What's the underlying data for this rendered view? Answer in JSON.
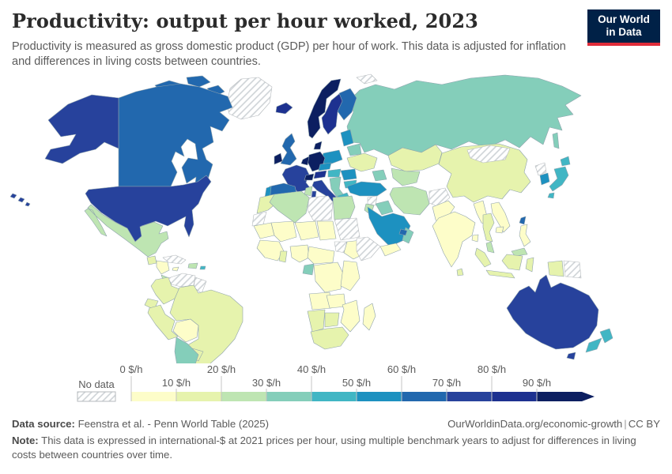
{
  "header": {
    "title": "Productivity: output per hour worked, 2023",
    "subtitle": "Productivity is measured as gross domestic product (GDP) per hour of work. This data is adjusted for inflation and differences in living costs between countries.",
    "logo": {
      "line1": "Our World",
      "line2": "in Data",
      "bg_color": "#002147",
      "accent_color": "#e02c3a"
    }
  },
  "legend": {
    "no_data_label": "No data",
    "tick_labels": [
      "0 $/h",
      "10 $/h",
      "20 $/h",
      "30 $/h",
      "40 $/h",
      "50 $/h",
      "60 $/h",
      "70 $/h",
      "80 $/h",
      "90 $/h"
    ],
    "bin_colors": [
      "#fdfdc9",
      "#e6f3ad",
      "#bee5b2",
      "#84ceba",
      "#41b6c4",
      "#1d91c0",
      "#2268ae",
      "#27429c",
      "#1d3190",
      "#0c1f61"
    ],
    "label_color": "#5b5b5b",
    "tick_color": "#c4c4c4",
    "nodata_border": "#b5babd",
    "country_border": "#8fa3ad"
  },
  "chart_data": {
    "type": "heatmap",
    "subtype": "choropleth-world-map",
    "title": "Productivity: output per hour worked, 2023",
    "unit": "$/h",
    "year": "2023",
    "legend_position": "bottom",
    "bins_order": [
      "no-data",
      "0-10 $/h",
      "10-20 $/h",
      "20-30 $/h",
      "30-40 $/h",
      "40-50 $/h",
      "50-60 $/h",
      "60-70 $/h",
      "70-80 $/h",
      "80-90 $/h",
      "90+ $/h"
    ],
    "countries_by_bin": {
      "no-data": [
        "greenland",
        "cuba",
        "venezuela",
        "guyana-suriname",
        "svalbard",
        "libya",
        "sudan",
        "south-sudan",
        "somalia",
        "western-sahara",
        "syria",
        "afghanistan",
        "mongolia",
        "north-korea",
        "papua-new-guinea"
      ],
      "0-10 $/h": [
        "honduras-nicaragua",
        "jamaica",
        "bolivia",
        "mauritania",
        "mali",
        "niger",
        "chad",
        "west-africa",
        "nigeria",
        "cameroon-car",
        "ethiopia",
        "drc",
        "kenya-tanzania",
        "angola",
        "zambia",
        "mozambique-zimbabwe",
        "madagascar",
        "yemen",
        "pakistan",
        "india",
        "bangladesh",
        "myanmar",
        "vietnam-laos",
        "cambodia",
        "philippines"
      ],
      "10-20 $/h": [
        "guatemala",
        "colombia",
        "ecuador",
        "peru",
        "brazil",
        "paraguay",
        "ukraine",
        "kazakhstan",
        "morocco",
        "ghana",
        "namibia",
        "botswana",
        "south-africa",
        "sri-lanka",
        "china",
        "thailand",
        "indonesia"
      ],
      "20-30 $/h": [
        "mexico",
        "costa-rica-panama",
        "hispaniola",
        "algeria",
        "tunisia",
        "egypt",
        "iran",
        "uzbekistan-turkmenistan",
        "malaysia",
        "israel-jordan"
      ],
      "30-40 $/h": [
        "chile-argentina",
        "uruguay",
        "russia",
        "belarus",
        "balkans",
        "caucasus",
        "iraq",
        "oman",
        "gabon"
      ],
      "40-50 $/h": [
        "japan",
        "new-zealand",
        "puerto-rico",
        "greece",
        "hungary-slovakia",
        "bulgaria"
      ],
      "50-60 $/h": [
        "turkey",
        "saudi-arabia",
        "south-korea",
        "poland",
        "czechia",
        "romania",
        "baltics",
        "portugal"
      ],
      "60-70 $/h": [
        "canada",
        "united-kingdom",
        "finland",
        "spain",
        "taiwan",
        "uae"
      ],
      "70-80 $/h": [
        "united-states",
        "australia",
        "france",
        "italy"
      ],
      "80-90 $/h": [
        "iceland",
        "sweden",
        "austria"
      ],
      "90+ $/h": [
        "norway",
        "denmark",
        "ireland",
        "germany",
        "benelux",
        "switzerland"
      ]
    }
  },
  "footer": {
    "data_source_label": "Data source:",
    "data_source_text": "Feenstra et al. - Penn World Table (2025)",
    "url": "OurWorldinData.org/economic-growth",
    "separator": "|",
    "license": "CC BY",
    "note_label": "Note:",
    "note_text": "This data is expressed in international-$ at 2021 prices per hour, using multiple benchmark years to adjust for differences in living costs between countries over time."
  }
}
